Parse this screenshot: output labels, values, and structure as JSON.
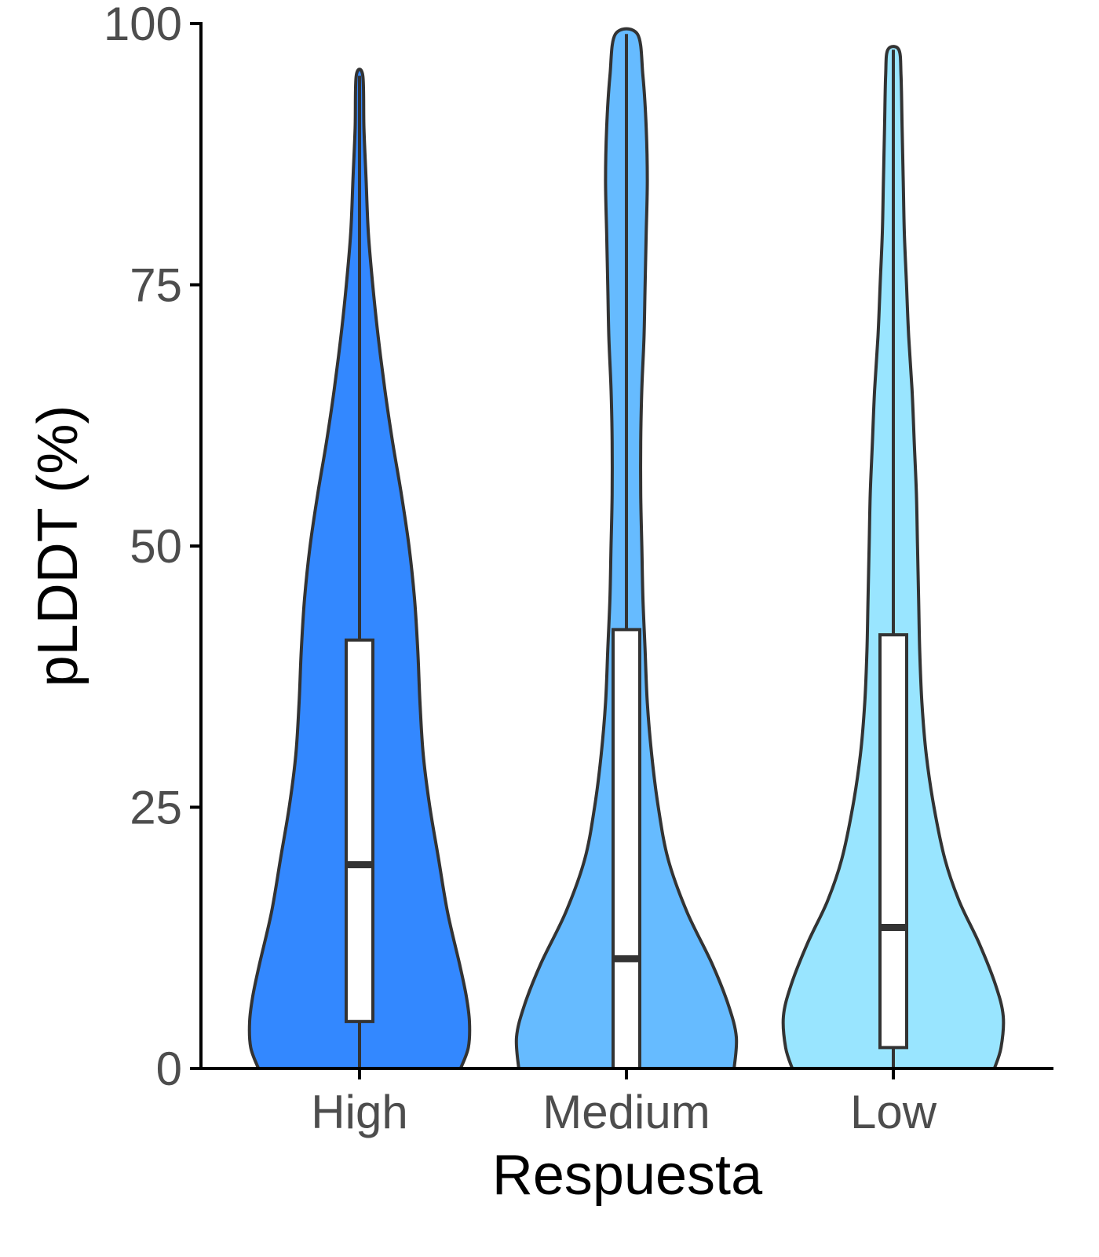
{
  "chart_data": {
    "type": "violin",
    "xlabel": "Respuesta",
    "ylabel": "pLDDT (%)",
    "ylim": [
      0,
      100
    ],
    "yticks": [
      0,
      25,
      50,
      75,
      100
    ],
    "grid": false,
    "legend": "none",
    "categories": [
      "High",
      "Medium",
      "Low"
    ],
    "groups": [
      {
        "name": "High",
        "color": "#3388ff",
        "min": 0,
        "max": 95,
        "q1": 4.5,
        "median": 19.5,
        "q3": 41,
        "density_profile": [
          [
            0,
            0.92
          ],
          [
            2,
            0.99
          ],
          [
            4.5,
            1.0
          ],
          [
            7,
            0.97
          ],
          [
            10,
            0.91
          ],
          [
            15,
            0.8
          ],
          [
            20,
            0.72
          ],
          [
            25,
            0.64
          ],
          [
            30,
            0.58
          ],
          [
            35,
            0.55
          ],
          [
            40,
            0.53
          ],
          [
            45,
            0.5
          ],
          [
            50,
            0.45
          ],
          [
            55,
            0.38
          ],
          [
            60,
            0.3
          ],
          [
            65,
            0.23
          ],
          [
            70,
            0.17
          ],
          [
            75,
            0.12
          ],
          [
            80,
            0.08
          ],
          [
            85,
            0.06
          ],
          [
            90,
            0.04
          ],
          [
            95,
            0.03
          ]
        ]
      },
      {
        "name": "Medium",
        "color": "#66bbff",
        "min": 0,
        "max": 99,
        "q1": 0,
        "median": 10.5,
        "q3": 42,
        "density_profile": [
          [
            0,
            0.98
          ],
          [
            3,
            1.0
          ],
          [
            6,
            0.93
          ],
          [
            10,
            0.78
          ],
          [
            15,
            0.55
          ],
          [
            20,
            0.38
          ],
          [
            25,
            0.29
          ],
          [
            30,
            0.23
          ],
          [
            35,
            0.19
          ],
          [
            40,
            0.17
          ],
          [
            45,
            0.15
          ],
          [
            50,
            0.14
          ],
          [
            55,
            0.13
          ],
          [
            60,
            0.13
          ],
          [
            65,
            0.14
          ],
          [
            70,
            0.16
          ],
          [
            75,
            0.17
          ],
          [
            80,
            0.18
          ],
          [
            85,
            0.19
          ],
          [
            90,
            0.18
          ],
          [
            95,
            0.15
          ],
          [
            99,
            0.1
          ]
        ]
      },
      {
        "name": "Low",
        "color": "#99e5ff",
        "min": 0,
        "max": 97.5,
        "q1": 2,
        "median": 13.5,
        "q3": 41.5,
        "density_profile": [
          [
            0,
            0.92
          ],
          [
            2,
            0.98
          ],
          [
            5,
            1.0
          ],
          [
            8,
            0.93
          ],
          [
            12,
            0.78
          ],
          [
            16,
            0.6
          ],
          [
            20,
            0.47
          ],
          [
            25,
            0.37
          ],
          [
            30,
            0.3
          ],
          [
            35,
            0.26
          ],
          [
            40,
            0.24
          ],
          [
            45,
            0.23
          ],
          [
            50,
            0.22
          ],
          [
            55,
            0.21
          ],
          [
            60,
            0.19
          ],
          [
            65,
            0.17
          ],
          [
            70,
            0.14
          ],
          [
            75,
            0.12
          ],
          [
            80,
            0.1
          ],
          [
            85,
            0.09
          ],
          [
            90,
            0.08
          ],
          [
            95,
            0.07
          ],
          [
            97.5,
            0.05
          ]
        ]
      }
    ]
  }
}
